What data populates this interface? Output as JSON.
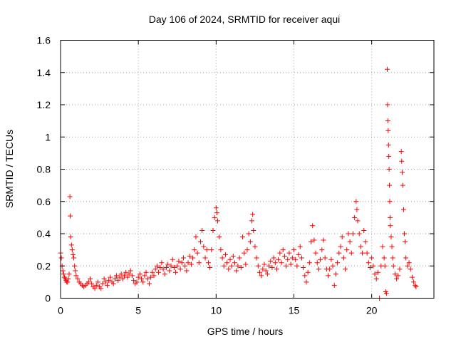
{
  "chart_data": {
    "type": "scatter",
    "title": "Day 106 of 2024, SRMTID for receiver aqui",
    "xlabel": "GPS time / hours",
    "ylabel": "SRMTID / TECUs",
    "xlim": [
      0,
      24
    ],
    "ylim": [
      0,
      1.6
    ],
    "xticks": [
      0,
      5,
      10,
      15,
      20
    ],
    "xtick_labels": [
      "0",
      "5",
      "10",
      "15",
      "20"
    ],
    "yticks": [
      0,
      0.2,
      0.4,
      0.6,
      0.8,
      1,
      1.2,
      1.4,
      1.6
    ],
    "ytick_labels": [
      "0",
      "0.2",
      "0.4",
      "0.6",
      "0.8",
      "1",
      "1.2",
      "1.4",
      "1.6"
    ],
    "grid": true,
    "marker": "+",
    "marker_color": "#ff0000",
    "series": [
      {
        "name": "SRMTID",
        "points": [
          [
            0.0,
            0.28
          ],
          [
            0.05,
            0.25
          ],
          [
            0.1,
            0.2
          ],
          [
            0.15,
            0.17
          ],
          [
            0.2,
            0.15
          ],
          [
            0.25,
            0.13
          ],
          [
            0.3,
            0.12
          ],
          [
            0.35,
            0.11
          ],
          [
            0.4,
            0.1
          ],
          [
            0.45,
            0.1
          ],
          [
            0.5,
            0.12
          ],
          [
            0.55,
            0.15
          ],
          [
            0.6,
            0.63
          ],
          [
            0.62,
            0.51
          ],
          [
            0.65,
            0.38
          ],
          [
            0.7,
            0.33
          ],
          [
            0.75,
            0.3
          ],
          [
            0.8,
            0.27
          ],
          [
            0.85,
            0.25
          ],
          [
            0.9,
            0.2
          ],
          [
            0.95,
            0.17
          ],
          [
            1.0,
            0.14
          ],
          [
            1.1,
            0.12
          ],
          [
            1.2,
            0.1
          ],
          [
            1.3,
            0.09
          ],
          [
            1.4,
            0.08
          ],
          [
            1.5,
            0.07
          ],
          [
            1.6,
            0.08
          ],
          [
            1.7,
            0.09
          ],
          [
            1.8,
            0.1
          ],
          [
            1.9,
            0.12
          ],
          [
            2.0,
            0.09
          ],
          [
            2.1,
            0.07
          ],
          [
            2.2,
            0.06
          ],
          [
            2.3,
            0.08
          ],
          [
            2.4,
            0.1
          ],
          [
            2.5,
            0.07
          ],
          [
            2.6,
            0.06
          ],
          [
            2.7,
            0.09
          ],
          [
            2.8,
            0.12
          ],
          [
            2.9,
            0.1
          ],
          [
            3.0,
            0.08
          ],
          [
            3.1,
            0.11
          ],
          [
            3.2,
            0.13
          ],
          [
            3.3,
            0.1
          ],
          [
            3.4,
            0.09
          ],
          [
            3.5,
            0.12
          ],
          [
            3.6,
            0.14
          ],
          [
            3.7,
            0.11
          ],
          [
            3.8,
            0.13
          ],
          [
            3.9,
            0.15
          ],
          [
            4.0,
            0.12
          ],
          [
            4.1,
            0.14
          ],
          [
            4.2,
            0.16
          ],
          [
            4.3,
            0.13
          ],
          [
            4.4,
            0.15
          ],
          [
            4.5,
            0.17
          ],
          [
            4.6,
            0.14
          ],
          [
            4.7,
            0.11
          ],
          [
            4.8,
            0.09
          ],
          [
            4.9,
            0.1
          ],
          [
            5.0,
            0.13
          ],
          [
            5.1,
            0.15
          ],
          [
            5.2,
            0.12
          ],
          [
            5.3,
            0.1
          ],
          [
            5.4,
            0.14
          ],
          [
            5.5,
            0.16
          ],
          [
            5.6,
            0.12
          ],
          [
            5.7,
            0.09
          ],
          [
            5.8,
            0.13
          ],
          [
            5.9,
            0.16
          ],
          [
            6.0,
            0.14
          ],
          [
            6.1,
            0.18
          ],
          [
            6.2,
            0.2
          ],
          [
            6.3,
            0.16
          ],
          [
            6.4,
            0.19
          ],
          [
            6.5,
            0.22
          ],
          [
            6.6,
            0.18
          ],
          [
            6.7,
            0.15
          ],
          [
            6.8,
            0.19
          ],
          [
            6.9,
            0.21
          ],
          [
            7.0,
            0.17
          ],
          [
            7.1,
            0.2
          ],
          [
            7.2,
            0.24
          ],
          [
            7.3,
            0.19
          ],
          [
            7.4,
            0.16
          ],
          [
            7.5,
            0.2
          ],
          [
            7.6,
            0.23
          ],
          [
            7.7,
            0.18
          ],
          [
            7.8,
            0.22
          ],
          [
            7.9,
            0.25
          ],
          [
            8.0,
            0.2
          ],
          [
            8.1,
            0.17
          ],
          [
            8.2,
            0.22
          ],
          [
            8.3,
            0.26
          ],
          [
            8.4,
            0.21
          ],
          [
            8.5,
            0.25
          ],
          [
            8.6,
            0.3
          ],
          [
            8.7,
            0.38
          ],
          [
            8.8,
            0.28
          ],
          [
            8.9,
            0.22
          ],
          [
            9.0,
            0.35
          ],
          [
            9.1,
            0.42
          ],
          [
            9.2,
            0.32
          ],
          [
            9.3,
            0.25
          ],
          [
            9.4,
            0.3
          ],
          [
            9.5,
            0.22
          ],
          [
            9.6,
            0.19
          ],
          [
            9.7,
            0.3
          ],
          [
            9.8,
            0.42
          ],
          [
            9.9,
            0.5
          ],
          [
            10.0,
            0.56
          ],
          [
            10.05,
            0.53
          ],
          [
            10.1,
            0.48
          ],
          [
            10.2,
            0.38
          ],
          [
            10.3,
            0.3
          ],
          [
            10.4,
            0.25
          ],
          [
            10.5,
            0.2
          ],
          [
            10.6,
            0.27
          ],
          [
            10.7,
            0.22
          ],
          [
            10.8,
            0.18
          ],
          [
            10.9,
            0.24
          ],
          [
            11.0,
            0.2
          ],
          [
            11.1,
            0.26
          ],
          [
            11.2,
            0.22
          ],
          [
            11.3,
            0.17
          ],
          [
            11.4,
            0.2
          ],
          [
            11.5,
            0.25
          ],
          [
            11.6,
            0.19
          ],
          [
            11.7,
            0.38
          ],
          [
            11.8,
            0.28
          ],
          [
            11.9,
            0.21
          ],
          [
            12.0,
            0.3
          ],
          [
            12.1,
            0.4
          ],
          [
            12.2,
            0.35
          ],
          [
            12.3,
            0.48
          ],
          [
            12.35,
            0.52
          ],
          [
            12.4,
            0.42
          ],
          [
            12.5,
            0.32
          ],
          [
            12.6,
            0.25
          ],
          [
            12.7,
            0.2
          ],
          [
            12.8,
            0.16
          ],
          [
            12.9,
            0.14
          ],
          [
            13.0,
            0.18
          ],
          [
            13.1,
            0.21
          ],
          [
            13.2,
            0.17
          ],
          [
            13.3,
            0.15
          ],
          [
            13.4,
            0.2
          ],
          [
            13.5,
            0.23
          ],
          [
            13.6,
            0.19
          ],
          [
            13.7,
            0.25
          ],
          [
            13.8,
            0.22
          ],
          [
            13.9,
            0.18
          ],
          [
            14.0,
            0.24
          ],
          [
            14.1,
            0.28
          ],
          [
            14.2,
            0.22
          ],
          [
            14.3,
            0.3
          ],
          [
            14.4,
            0.26
          ],
          [
            14.5,
            0.2
          ],
          [
            14.6,
            0.24
          ],
          [
            14.7,
            0.28
          ],
          [
            14.8,
            0.21
          ],
          [
            14.9,
            0.25
          ],
          [
            15.0,
            0.3
          ],
          [
            15.1,
            0.24
          ],
          [
            15.2,
            0.2
          ],
          [
            15.3,
            0.27
          ],
          [
            15.4,
            0.32
          ],
          [
            15.5,
            0.25
          ],
          [
            15.6,
            0.19
          ],
          [
            15.7,
            0.14
          ],
          [
            15.8,
            0.1
          ],
          [
            15.9,
            0.16
          ],
          [
            16.0,
            0.22
          ],
          [
            16.1,
            0.35
          ],
          [
            16.2,
            0.45
          ],
          [
            16.3,
            0.36
          ],
          [
            16.4,
            0.28
          ],
          [
            16.5,
            0.22
          ],
          [
            16.6,
            0.18
          ],
          [
            16.7,
            0.24
          ],
          [
            16.8,
            0.3
          ],
          [
            16.9,
            0.36
          ],
          [
            17.0,
            0.25
          ],
          [
            17.1,
            0.18
          ],
          [
            17.2,
            0.14
          ],
          [
            17.3,
            0.18
          ],
          [
            17.4,
            0.24
          ],
          [
            17.5,
            0.2
          ],
          [
            17.6,
            0.08
          ],
          [
            17.7,
            0.15
          ],
          [
            17.8,
            0.22
          ],
          [
            17.9,
            0.28
          ],
          [
            18.0,
            0.32
          ],
          [
            18.1,
            0.38
          ],
          [
            18.2,
            0.25
          ],
          [
            18.3,
            0.18
          ],
          [
            18.4,
            0.3
          ],
          [
            18.5,
            0.4
          ],
          [
            18.6,
            0.35
          ],
          [
            18.7,
            0.28
          ],
          [
            18.8,
            0.4
          ],
          [
            18.9,
            0.5
          ],
          [
            19.0,
            0.6
          ],
          [
            19.05,
            0.55
          ],
          [
            19.1,
            0.48
          ],
          [
            19.2,
            0.4
          ],
          [
            19.3,
            0.32
          ],
          [
            19.4,
            0.28
          ],
          [
            19.5,
            0.42
          ],
          [
            19.6,
            0.35
          ],
          [
            19.7,
            0.28
          ],
          [
            19.8,
            0.22
          ],
          [
            19.9,
            0.19
          ],
          [
            20.0,
            0.25
          ],
          [
            20.1,
            0.2
          ],
          [
            20.2,
            0.15
          ],
          [
            20.3,
            0.12
          ],
          [
            20.4,
            0.16
          ],
          [
            20.5,
            0.0
          ],
          [
            20.6,
            0.2
          ],
          [
            20.7,
            0.32
          ],
          [
            20.8,
            0.25
          ],
          [
            20.85,
            0.2
          ],
          [
            20.9,
            0.04
          ],
          [
            20.95,
            0.03
          ],
          [
            21.0,
            1.42
          ],
          [
            21.02,
            1.2
          ],
          [
            21.04,
            1.1
          ],
          [
            21.06,
            1.04
          ],
          [
            21.08,
            0.95
          ],
          [
            21.1,
            0.88
          ],
          [
            21.12,
            0.8
          ],
          [
            21.14,
            0.7
          ],
          [
            21.16,
            0.6
          ],
          [
            21.18,
            0.5
          ],
          [
            21.2,
            0.45
          ],
          [
            21.25,
            0.38
          ],
          [
            21.3,
            0.32
          ],
          [
            21.35,
            0.25
          ],
          [
            21.4,
            0.2
          ],
          [
            21.5,
            0.15
          ],
          [
            21.6,
            0.12
          ],
          [
            21.7,
            0.14
          ],
          [
            21.8,
            0.18
          ],
          [
            21.9,
            0.91
          ],
          [
            21.93,
            0.85
          ],
          [
            21.96,
            0.78
          ],
          [
            22.0,
            0.7
          ],
          [
            22.05,
            0.55
          ],
          [
            22.1,
            0.4
          ],
          [
            22.15,
            0.35
          ],
          [
            22.2,
            0.25
          ],
          [
            22.3,
            0.2
          ],
          [
            22.4,
            0.22
          ],
          [
            22.5,
            0.18
          ],
          [
            22.6,
            0.13
          ],
          [
            22.7,
            0.1
          ],
          [
            22.8,
            0.08
          ],
          [
            22.85,
            0.07
          ]
        ]
      }
    ]
  }
}
